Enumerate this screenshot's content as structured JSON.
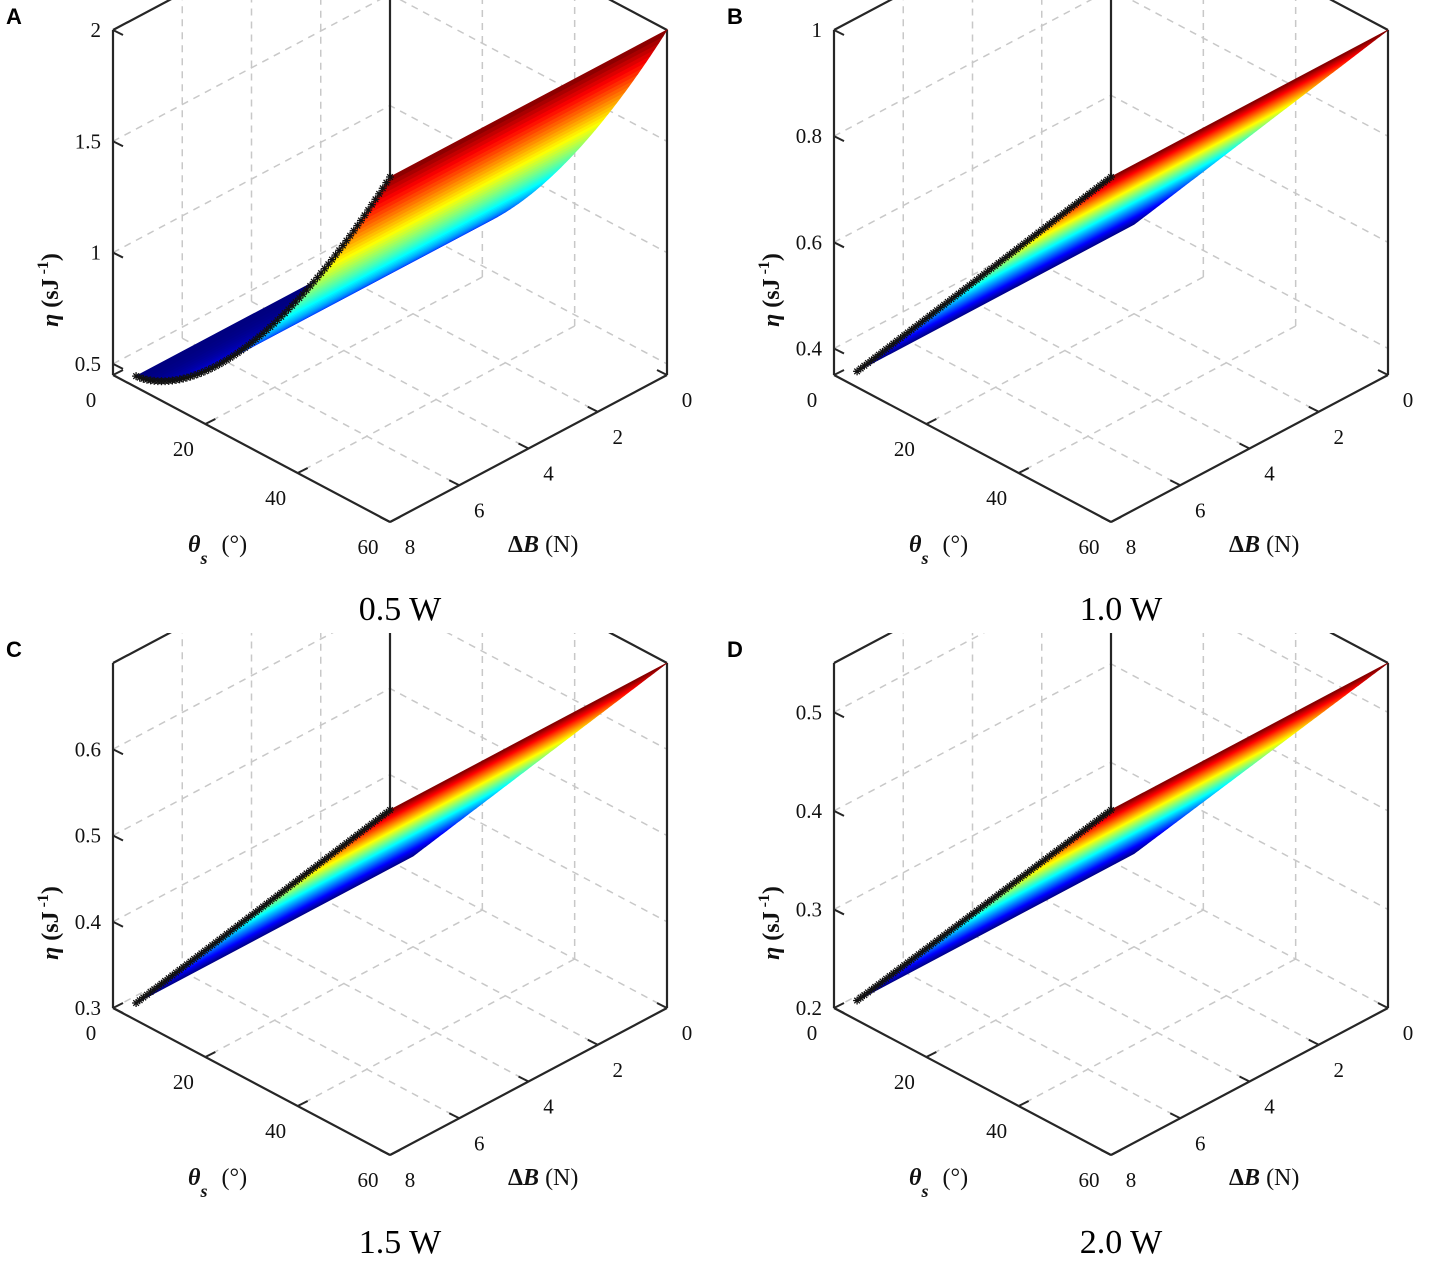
{
  "chart_data": [
    {
      "type": "surface",
      "panel_label": "A",
      "caption": "0.5 W",
      "xlabel": "θs (°)",
      "ylabel": "ΔB (N)",
      "zlabel": "η (sJ⁻¹)",
      "xlim": [
        0,
        60
      ],
      "ylim": [
        0,
        8
      ],
      "zlim": [
        0.45,
        2.0
      ],
      "x_ticks": [
        0,
        20,
        40,
        60
      ],
      "y_ticks": [
        0,
        2,
        4,
        6,
        8
      ],
      "z_ticks": [
        0.5,
        1,
        1.5,
        2
      ],
      "z_tick_labels": [
        "0.5",
        "1",
        "1.5",
        "2"
      ],
      "surface": {
        "theta_range": [
          5,
          60
        ],
        "deltaB_range": [
          0,
          8
        ],
        "eta_at_theta_min": 0.5,
        "eta_at_theta_max": 2.0,
        "curvature": 1.6,
        "deltaB_slope": 0.0
      },
      "highlight_line": "deltaB = 8 edge marked with asterisks",
      "colormap": [
        "#00008f",
        "#0000ff",
        "#00ffff",
        "#ffff00",
        "#ff0000",
        "#800000"
      ],
      "grid": true
    },
    {
      "type": "surface",
      "panel_label": "B",
      "caption": "1.0 W",
      "xlabel": "θs (°)",
      "ylabel": "ΔB (N)",
      "zlabel": "η (sJ⁻¹)",
      "xlim": [
        0,
        60
      ],
      "ylim": [
        0,
        8
      ],
      "zlim": [
        0.35,
        1.0
      ],
      "x_ticks": [
        0,
        20,
        40,
        60
      ],
      "y_ticks": [
        0,
        2,
        4,
        6,
        8
      ],
      "z_ticks": [
        0.4,
        0.6,
        0.8,
        1
      ],
      "z_tick_labels": [
        "0.4",
        "0.6",
        "0.8",
        "1"
      ],
      "surface": {
        "theta_range": [
          5,
          60
        ],
        "deltaB_range": [
          0,
          8
        ],
        "eta_at_theta_min": 0.38,
        "eta_at_theta_max": 1.0,
        "curvature": 1.0,
        "deltaB_slope": 0.0
      },
      "highlight_line": "deltaB = 8 edge marked with asterisks",
      "colormap": [
        "#00008f",
        "#0000ff",
        "#00ffff",
        "#ffff00",
        "#ff0000",
        "#800000"
      ],
      "grid": true
    },
    {
      "type": "surface",
      "panel_label": "C",
      "caption": "1.5 W",
      "xlabel": "θs (°)",
      "ylabel": "ΔB (N)",
      "zlabel": "η (sJ⁻¹)",
      "xlim": [
        0,
        60
      ],
      "ylim": [
        0,
        8
      ],
      "zlim": [
        0.3,
        0.7
      ],
      "x_ticks": [
        0,
        20,
        40,
        60
      ],
      "y_ticks": [
        0,
        2,
        4,
        6,
        8
      ],
      "z_ticks": [
        0.3,
        0.4,
        0.5,
        0.6
      ],
      "z_tick_labels": [
        "0.3",
        "0.4",
        "0.5",
        "0.6"
      ],
      "surface": {
        "theta_range": [
          5,
          60
        ],
        "deltaB_range": [
          0,
          8
        ],
        "eta_at_theta_min": 0.32,
        "eta_at_theta_max": 0.7,
        "curvature": 1.0,
        "deltaB_slope": 0.0
      },
      "highlight_line": "deltaB = 8 edge marked with asterisks",
      "colormap": [
        "#00008f",
        "#0000ff",
        "#00ffff",
        "#ffff00",
        "#ff0000",
        "#800000"
      ],
      "grid": true
    },
    {
      "type": "surface",
      "panel_label": "D",
      "caption": "2.0 W",
      "xlabel": "θs (°)",
      "ylabel": "ΔB (N)",
      "zlabel": "η (sJ⁻¹)",
      "xlim": [
        0,
        60
      ],
      "ylim": [
        0,
        8
      ],
      "zlim": [
        0.2,
        0.55
      ],
      "x_ticks": [
        0,
        20,
        40,
        60
      ],
      "y_ticks": [
        0,
        2,
        4,
        6,
        8
      ],
      "z_ticks": [
        0.2,
        0.3,
        0.4,
        0.5
      ],
      "z_tick_labels": [
        "0.2",
        "0.3",
        "0.4",
        "0.5"
      ],
      "surface": {
        "theta_range": [
          5,
          60
        ],
        "deltaB_range": [
          0,
          8
        ],
        "eta_at_theta_min": 0.22,
        "eta_at_theta_max": 0.55,
        "curvature": 1.0,
        "deltaB_slope": 0.0
      },
      "highlight_line": "deltaB = 8 edge marked with asterisks",
      "colormap": [
        "#00008f",
        "#0000ff",
        "#00ffff",
        "#ffff00",
        "#ff0000",
        "#800000"
      ],
      "grid": true
    }
  ]
}
